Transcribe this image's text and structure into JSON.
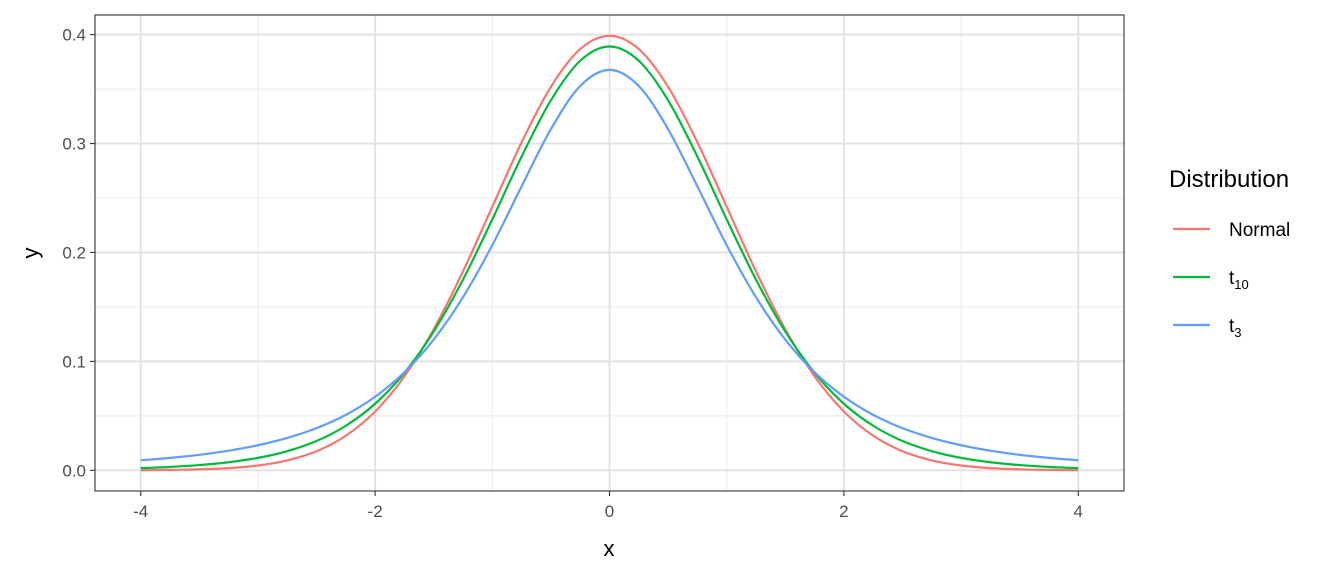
{
  "chart_data": {
    "type": "line",
    "xlabel": "x",
    "ylabel": "y",
    "xlim": [
      -4.39,
      4.39
    ],
    "ylim": [
      -0.019,
      0.418
    ],
    "x_ticks": [
      -4,
      -2,
      0,
      2,
      4
    ],
    "x_tick_labels": [
      "-4",
      "-2",
      "0",
      "2",
      "4"
    ],
    "y_ticks": [
      0,
      0.1,
      0.2,
      0.3,
      0.4
    ],
    "y_tick_labels": [
      "0.0",
      "0.1",
      "0.2",
      "0.3",
      "0.4"
    ],
    "grid": true,
    "legend": {
      "title": "Distribution",
      "position": "right"
    },
    "x": [
      -4,
      -3.75,
      -3.5,
      -3.25,
      -3,
      -2.75,
      -2.5,
      -2.25,
      -2,
      -1.75,
      -1.5,
      -1.25,
      -1,
      -0.75,
      -0.5,
      -0.25,
      0,
      0.25,
      0.5,
      0.75,
      1,
      1.25,
      1.5,
      1.75,
      2,
      2.25,
      2.5,
      2.75,
      3,
      3.25,
      3.5,
      3.75,
      4
    ],
    "series": [
      {
        "name": "Normal",
        "label": "Normal",
        "sub": "",
        "color": "#F8766D",
        "values": [
          0.0001,
          0.0004,
          0.0009,
          0.002,
          0.0044,
          0.0091,
          0.0175,
          0.0317,
          0.054,
          0.0863,
          0.1295,
          0.1826,
          0.242,
          0.3011,
          0.3521,
          0.3867,
          0.3989,
          0.3867,
          0.3521,
          0.3011,
          0.242,
          0.1826,
          0.1295,
          0.0863,
          0.054,
          0.0317,
          0.0175,
          0.0091,
          0.0044,
          0.002,
          0.0009,
          0.0004,
          0.0001
        ]
      },
      {
        "name": "t10",
        "label": "t",
        "sub": "10",
        "color": "#00BA38",
        "values": [
          0.002,
          0.0031,
          0.0048,
          0.0074,
          0.0114,
          0.0176,
          0.0269,
          0.0409,
          0.0611,
          0.0895,
          0.1274,
          0.1751,
          0.2304,
          0.288,
          0.3397,
          0.376,
          0.3891,
          0.376,
          0.3397,
          0.288,
          0.2304,
          0.1751,
          0.1274,
          0.0895,
          0.0611,
          0.0409,
          0.0269,
          0.0176,
          0.0114,
          0.0074,
          0.0048,
          0.0031,
          0.002
        ]
      },
      {
        "name": "t3",
        "label": "t",
        "sub": "3",
        "color": "#619CFF",
        "values": [
          0.0092,
          0.0114,
          0.0142,
          0.018,
          0.023,
          0.0297,
          0.0387,
          0.0509,
          0.0675,
          0.09,
          0.12,
          0.1589,
          0.2067,
          0.2607,
          0.3132,
          0.3528,
          0.3676,
          0.3528,
          0.3132,
          0.2607,
          0.2067,
          0.1589,
          0.12,
          0.09,
          0.0675,
          0.0509,
          0.0387,
          0.0297,
          0.023,
          0.018,
          0.0142,
          0.0114,
          0.0092
        ]
      }
    ]
  }
}
